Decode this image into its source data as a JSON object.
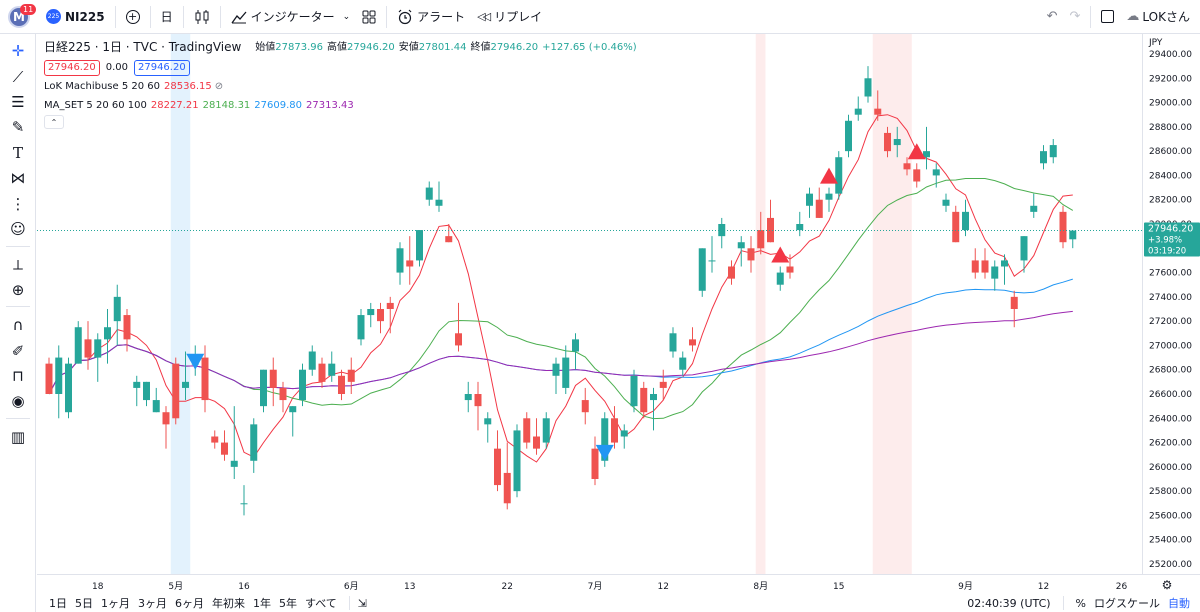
{
  "header": {
    "avatar_letter": "M",
    "notification_count": "11",
    "symbol_badge": "225",
    "symbol": "NI225",
    "interval": "日",
    "indicators_label": "インジケーター",
    "alert_label": "アラート",
    "replay_label": "リプレイ",
    "user_label": "LOKさん"
  },
  "legend": {
    "title": "日経225 · 1日 · TVC · TradingView",
    "ohlc_open_label": "始値",
    "ohlc_open": "27873.96",
    "ohlc_high_label": "高値",
    "ohlc_high": "27946.20",
    "ohlc_low_label": "安値",
    "ohlc_low": "27801.44",
    "ohlc_close_label": "終値",
    "ohlc_close": "27946.20",
    "ohlc_change": "+127.65 (+0.46%)",
    "bid": "27946.20",
    "spread": "0.00",
    "ask": "27946.20",
    "ind1_name": "LoK Machibuse 5 20 60",
    "ind1_value": "28536.15",
    "ind2_name": "MA_SET 5 20 60 100",
    "ind2_v1": "28227.21",
    "ind2_v2": "28148.31",
    "ind2_v3": "27609.80",
    "ind2_v4": "27313.43"
  },
  "price_axis": {
    "currency": "JPY",
    "ticks": [
      "29400.00",
      "29200.00",
      "29000.00",
      "28800.00",
      "28600.00",
      "28400.00",
      "28200.00",
      "28000.00",
      "27800.00",
      "27600.00",
      "27400.00",
      "27200.00",
      "27000.00",
      "26800.00",
      "26600.00",
      "26400.00",
      "26200.00",
      "26000.00",
      "25800.00",
      "25600.00",
      "25400.00",
      "25200.00"
    ],
    "last_price": "27946.20",
    "last_change": "+3.98%",
    "countdown": "03:19:20"
  },
  "time_axis": {
    "ticks": [
      "18",
      "5月",
      "16",
      "6月",
      "13",
      "22",
      "7月",
      "12",
      "8月",
      "15",
      "9月",
      "12",
      "26"
    ]
  },
  "bottom": {
    "ranges": [
      "1日",
      "5日",
      "1ヶ月",
      "3ヶ月",
      "6ヶ月",
      "年初来",
      "1年",
      "5年",
      "すべて"
    ],
    "clock": "02:40:39 (UTC)",
    "percent": "%",
    "log": "ログスケール",
    "auto": "自動"
  },
  "colors": {
    "up": "#26a69a",
    "down": "#ef5350",
    "ma5": "#f23645",
    "ma20": "#4caf50",
    "ma60": "#2196f3",
    "ma100": "#9c27b0",
    "blue_band": "#e3f2fd",
    "red_band": "#fdecec"
  },
  "chart_data": {
    "type": "candlestick",
    "ylim": [
      25200,
      29400
    ],
    "x_ticks": [
      "18",
      "5月",
      "16",
      "6月",
      "13",
      "22",
      "7月",
      "12",
      "8月",
      "15",
      "9月",
      "12",
      "26"
    ],
    "candles": [
      [
        26850,
        26900,
        26600,
        26600
      ],
      [
        26600,
        27000,
        26400,
        26900
      ],
      [
        26450,
        26900,
        26400,
        26850
      ],
      [
        26850,
        27200,
        26850,
        27150
      ],
      [
        27050,
        27200,
        26800,
        26900
      ],
      [
        26900,
        27100,
        26700,
        27050
      ],
      [
        27050,
        27300,
        26850,
        27150
      ],
      [
        27200,
        27500,
        27000,
        27400
      ],
      [
        27250,
        27300,
        26950,
        27050
      ],
      [
        26650,
        26750,
        26500,
        26700
      ],
      [
        26550,
        26700,
        26500,
        26700
      ],
      [
        26450,
        26650,
        26450,
        26550
      ],
      [
        26450,
        26500,
        26150,
        26350
      ],
      [
        26850,
        26900,
        26350,
        26400
      ],
      [
        26650,
        26950,
        26550,
        26700
      ],
      [
        26850,
        27000,
        26750,
        26850
      ],
      [
        26900,
        27000,
        26450,
        26550
      ],
      [
        26250,
        26300,
        26150,
        26200
      ],
      [
        26200,
        26300,
        26050,
        26100
      ],
      [
        26000,
        26500,
        25900,
        26050
      ],
      [
        25700,
        25850,
        25600,
        25700
      ],
      [
        26050,
        26400,
        25950,
        26350
      ],
      [
        26500,
        26800,
        26450,
        26800
      ],
      [
        26800,
        26900,
        26500,
        26650
      ],
      [
        26650,
        26700,
        26450,
        26550
      ],
      [
        26450,
        26500,
        26250,
        26500
      ],
      [
        26550,
        26850,
        26500,
        26800
      ],
      [
        26800,
        27000,
        26750,
        26950
      ],
      [
        26850,
        26900,
        26650,
        26700
      ],
      [
        26750,
        26950,
        26700,
        26850
      ],
      [
        26750,
        26800,
        26550,
        26600
      ],
      [
        26800,
        26900,
        26600,
        26700
      ],
      [
        27050,
        27300,
        27000,
        27250
      ],
      [
        27250,
        27350,
        27150,
        27300
      ],
      [
        27300,
        27350,
        27100,
        27200
      ],
      [
        27350,
        27400,
        27100,
        27300
      ],
      [
        27600,
        27850,
        27500,
        27800
      ],
      [
        27700,
        27900,
        27500,
        27650
      ],
      [
        27700,
        27950,
        27650,
        27950
      ],
      [
        28200,
        28350,
        28150,
        28300
      ],
      [
        28150,
        28350,
        28100,
        28200
      ],
      [
        27900,
        28000,
        27850,
        27850
      ],
      [
        27100,
        27350,
        26950,
        27000
      ],
      [
        26550,
        26700,
        26450,
        26600
      ],
      [
        26600,
        26700,
        26300,
        26500
      ],
      [
        26350,
        26450,
        26200,
        26400
      ],
      [
        26150,
        26300,
        25800,
        25850
      ],
      [
        25950,
        26200,
        25650,
        25700
      ],
      [
        25800,
        26350,
        25750,
        26300
      ],
      [
        26400,
        26450,
        26150,
        26200
      ],
      [
        26250,
        26400,
        26100,
        26150
      ],
      [
        26200,
        26450,
        26150,
        26400
      ],
      [
        26750,
        26900,
        26600,
        26850
      ],
      [
        26650,
        27000,
        26600,
        26900
      ],
      [
        26950,
        27100,
        26800,
        27050
      ],
      [
        26550,
        26650,
        26350,
        26450
      ],
      [
        26150,
        26250,
        25850,
        25900
      ],
      [
        26050,
        26450,
        26000,
        26400
      ],
      [
        26400,
        26500,
        26150,
        26200
      ],
      [
        26250,
        26350,
        26150,
        26300
      ],
      [
        26500,
        26800,
        26450,
        26750
      ],
      [
        26650,
        26700,
        26400,
        26450
      ],
      [
        26550,
        26650,
        26300,
        26600
      ],
      [
        26700,
        26800,
        26550,
        26650
      ],
      [
        26950,
        27150,
        26900,
        27100
      ],
      [
        26800,
        26950,
        26750,
        26900
      ],
      [
        27050,
        27150,
        26950,
        27000
      ],
      [
        27450,
        27800,
        27400,
        27800
      ],
      [
        27700,
        27900,
        27600,
        27700
      ],
      [
        27900,
        28050,
        27800,
        28000
      ],
      [
        27650,
        27700,
        27500,
        27550
      ],
      [
        27800,
        27900,
        27650,
        27850
      ],
      [
        27800,
        27900,
        27600,
        27700
      ],
      [
        27950,
        28100,
        27750,
        27800
      ],
      [
        28050,
        28200,
        27850,
        27850
      ],
      [
        27500,
        27650,
        27450,
        27600
      ],
      [
        27650,
        27750,
        27550,
        27600
      ],
      [
        27950,
        28100,
        27900,
        28000
      ],
      [
        28150,
        28300,
        28050,
        28250
      ],
      [
        28200,
        28300,
        28050,
        28050
      ],
      [
        28200,
        28300,
        28100,
        28250
      ],
      [
        28250,
        28600,
        28200,
        28550
      ],
      [
        28600,
        28900,
        28550,
        28850
      ],
      [
        28900,
        29050,
        28850,
        28950
      ],
      [
        29050,
        29300,
        29000,
        29200
      ],
      [
        28950,
        29100,
        28850,
        28900
      ],
      [
        28750,
        28800,
        28550,
        28600
      ],
      [
        28650,
        28800,
        28550,
        28700
      ],
      [
        28500,
        28550,
        28400,
        28450
      ],
      [
        28450,
        28500,
        28300,
        28350
      ],
      [
        28550,
        28800,
        28450,
        28600
      ],
      [
        28400,
        28500,
        28300,
        28450
      ],
      [
        28150,
        28250,
        28100,
        28200
      ],
      [
        28100,
        28150,
        27850,
        27850
      ],
      [
        27950,
        28200,
        27900,
        28100
      ],
      [
        27700,
        27800,
        27550,
        27600
      ],
      [
        27700,
        27800,
        27550,
        27600
      ],
      [
        27550,
        27700,
        27450,
        27650
      ],
      [
        27650,
        27750,
        27500,
        27700
      ],
      [
        27400,
        27450,
        27150,
        27300
      ],
      [
        27700,
        27900,
        27600,
        27900
      ],
      [
        28100,
        28250,
        28050,
        28150
      ],
      [
        28500,
        28650,
        28450,
        28600
      ],
      [
        28550,
        28700,
        28500,
        28650
      ],
      [
        28100,
        28150,
        27800,
        27850
      ],
      [
        27874,
        27946,
        27801,
        27946
      ]
    ],
    "markers": [
      {
        "bar": 15,
        "shape": "down-triangle",
        "color": "#2196f3"
      },
      {
        "bar": 57,
        "shape": "down-triangle",
        "color": "#2196f3"
      },
      {
        "bar": 75,
        "shape": "up-triangle",
        "color": "#f23645"
      },
      {
        "bar": 80,
        "shape": "up-triangle",
        "color": "#f23645"
      },
      {
        "bar": 89,
        "shape": "up-triangle",
        "color": "#f23645"
      }
    ],
    "bands": [
      {
        "start": 13,
        "end": 14,
        "color": "#e3f2fd"
      },
      {
        "start": 73,
        "end": 73,
        "color": "#fdecec"
      },
      {
        "start": 85,
        "end": 88,
        "color": "#fdecec"
      }
    ]
  }
}
